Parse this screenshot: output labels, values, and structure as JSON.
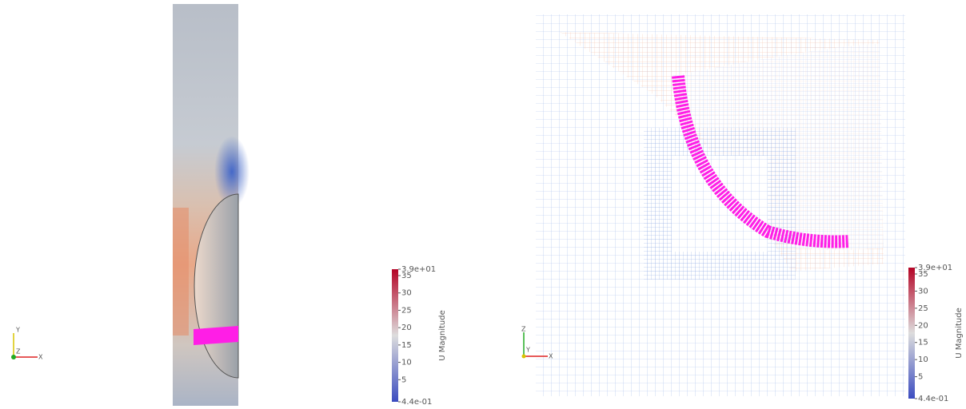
{
  "views": [
    {
      "colorbar": {
        "title": "U Magnitude",
        "labels": [
          "3.9e+01",
          "35",
          "30",
          "25",
          "20",
          "15",
          "10",
          "5",
          "4.4e-01"
        ]
      },
      "axes": {
        "up": "Y",
        "out": "Z",
        "right": "X"
      }
    },
    {
      "colorbar": {
        "title": "U Magnitude",
        "labels": [
          "3.9e+01",
          "35",
          "30",
          "25",
          "20",
          "15",
          "10",
          "5",
          "4.4e-01"
        ]
      },
      "axes": {
        "up": "Z",
        "out": "Y",
        "right": "X"
      }
    }
  ]
}
